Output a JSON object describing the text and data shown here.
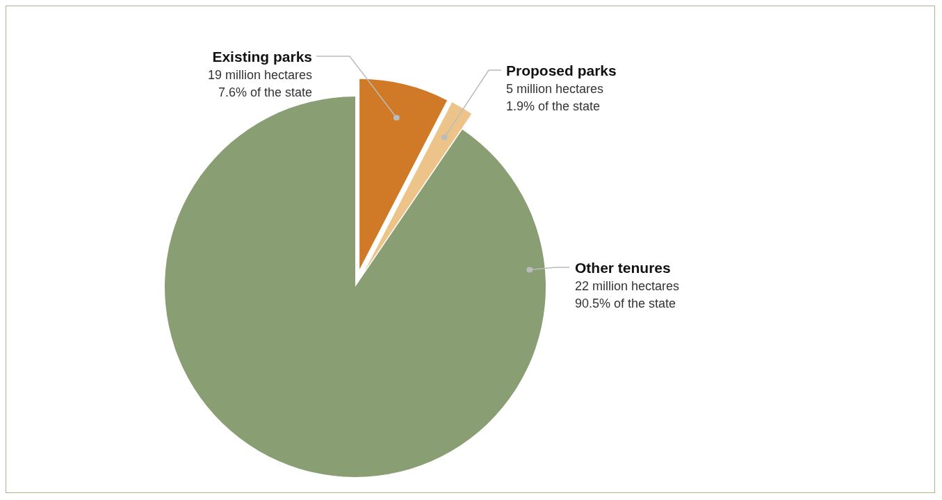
{
  "chart_data": {
    "type": "pie",
    "categories": [
      "Existing parks",
      "Proposed parks",
      "Other tenures"
    ],
    "values": [
      7.6,
      1.9,
      90.5
    ],
    "colors": [
      "#d07a27",
      "#ecc48a",
      "#8a9e74"
    ],
    "value_labels": [
      "19 million hectares\n7.6% of the state",
      "5 million hectares\n1.9% of the state",
      "22 million hectares\n90.5% of the state"
    ]
  }
}
